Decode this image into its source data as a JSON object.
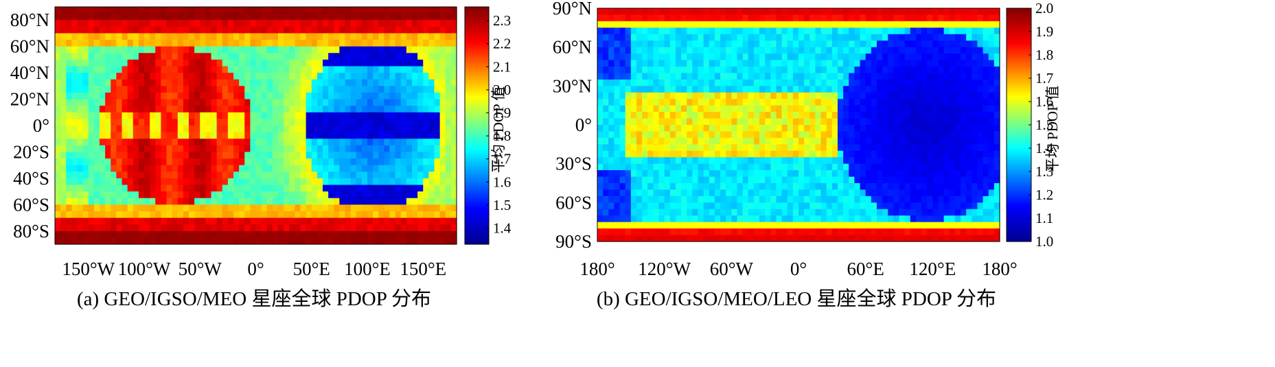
{
  "chart_data": [
    {
      "type": "heatmap",
      "id": "a",
      "caption": "(a) GEO/IGSO/MEO 星座全球 PDOP 分布",
      "colorbar_label": "平均 PDOP 值",
      "colorbar_range": [
        1.33,
        2.36
      ],
      "colorbar_ticks": [
        {
          "value": 1.4,
          "label": "1.4"
        },
        {
          "value": 1.5,
          "label": "1.5"
        },
        {
          "value": 1.6,
          "label": "1.6"
        },
        {
          "value": 1.7,
          "label": "1.7"
        },
        {
          "value": 1.8,
          "label": "1.8"
        },
        {
          "value": 1.9,
          "label": "1.9"
        },
        {
          "value": 2.0,
          "label": "2.0"
        },
        {
          "value": 2.1,
          "label": "2.1"
        },
        {
          "value": 2.2,
          "label": "2.2"
        },
        {
          "value": 2.3,
          "label": "2.3"
        }
      ],
      "x_range": [
        -180,
        180
      ],
      "y_range": [
        -90,
        90
      ],
      "x_ticks": [
        {
          "value": -150,
          "label": "150°W"
        },
        {
          "value": -100,
          "label": "100°W"
        },
        {
          "value": -50,
          "label": "50°W"
        },
        {
          "value": 0,
          "label": "0°"
        },
        {
          "value": 50,
          "label": "50°E"
        },
        {
          "value": 100,
          "label": "100°E"
        },
        {
          "value": 150,
          "label": "150°E"
        }
      ],
      "y_ticks": [
        {
          "value": 80,
          "label": "80°N"
        },
        {
          "value": 60,
          "label": "60°N"
        },
        {
          "value": 40,
          "label": "40°N"
        },
        {
          "value": 20,
          "label": "20°N"
        },
        {
          "value": 0,
          "label": "0°"
        },
        {
          "value": -20,
          "label": "20°S"
        },
        {
          "value": -40,
          "label": "40°S"
        },
        {
          "value": -60,
          "label": "60°S"
        },
        {
          "value": -80,
          "label": "80°S"
        }
      ],
      "grid": {
        "cols": 72,
        "rows": 36
      }
    },
    {
      "type": "heatmap",
      "id": "b",
      "caption": "(b) GEO/IGSO/MEO/LEO 星座全球 PDOP 分布",
      "colorbar_label": "平均 PDOP 值",
      "colorbar_range": [
        1.0,
        2.0
      ],
      "colorbar_ticks": [
        {
          "value": 1.0,
          "label": "1.0"
        },
        {
          "value": 1.1,
          "label": "1.1"
        },
        {
          "value": 1.2,
          "label": "1.2"
        },
        {
          "value": 1.3,
          "label": "1.3"
        },
        {
          "value": 1.4,
          "label": "1.4"
        },
        {
          "value": 1.5,
          "label": "1.5"
        },
        {
          "value": 1.6,
          "label": "1.6"
        },
        {
          "value": 1.7,
          "label": "1.7"
        },
        {
          "value": 1.8,
          "label": "1.8"
        },
        {
          "value": 1.9,
          "label": "1.9"
        },
        {
          "value": 2.0,
          "label": "2.0"
        }
      ],
      "x_range": [
        -180,
        180
      ],
      "y_range": [
        -90,
        90
      ],
      "x_ticks": [
        {
          "value": -180,
          "label": "180°"
        },
        {
          "value": -120,
          "label": "120°W"
        },
        {
          "value": -60,
          "label": "60°W"
        },
        {
          "value": 0,
          "label": "0°"
        },
        {
          "value": 60,
          "label": "60°E"
        },
        {
          "value": 120,
          "label": "120°E"
        },
        {
          "value": 180,
          "label": "180°"
        }
      ],
      "y_ticks": [
        {
          "value": 90,
          "label": "90°N"
        },
        {
          "value": 60,
          "label": "60°N"
        },
        {
          "value": 30,
          "label": "30°N"
        },
        {
          "value": 0,
          "label": "0°"
        },
        {
          "value": -30,
          "label": "30°S"
        },
        {
          "value": -60,
          "label": "60°S"
        },
        {
          "value": -90,
          "label": "90°S"
        }
      ],
      "grid": {
        "cols": 72,
        "rows": 36
      }
    }
  ],
  "colormap": [
    "#00008f",
    "#0000ff",
    "#00ffff",
    "#ffff00",
    "#ff0000",
    "#800000"
  ]
}
